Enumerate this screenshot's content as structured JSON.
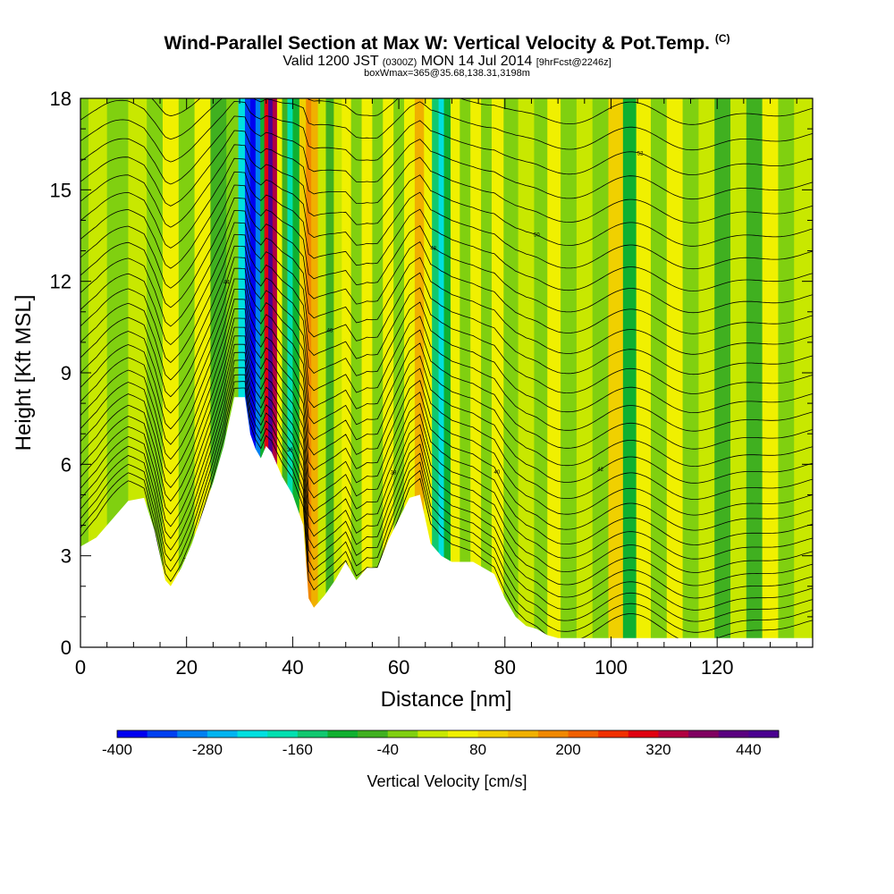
{
  "header": {
    "title": "Wind-Parallel Section at Max W: Vertical Velocity & Pot.Temp.",
    "copyright": "(C)",
    "valid_prefix": "Valid 1200 JST",
    "utc": "(0300Z)",
    "valid_date": "MON 14 Jul 2014",
    "forecast": "[9hrFcst@2246z]",
    "box_info": "boxWmax=365@35.68,138.31,3198m"
  },
  "chart_data": {
    "type": "heatmap",
    "xlabel": "Distance [nm]",
    "ylabel": "Height [Kft MSL]",
    "xlim": [
      0,
      138
    ],
    "ylim": [
      0,
      18
    ],
    "x_ticks": [
      0,
      20,
      40,
      60,
      80,
      100,
      120
    ],
    "y_ticks": [
      0,
      3,
      6,
      9,
      12,
      15,
      18
    ],
    "colorbar": {
      "label": "Vertical Velocity [cm/s]",
      "min": -400,
      "max": 480,
      "step": 40,
      "tick_labels": [
        -400,
        -280,
        -160,
        -40,
        80,
        200,
        320,
        440
      ],
      "colors": [
        "#0000f0",
        "#0040f0",
        "#0080f0",
        "#00b4f0",
        "#00e0e0",
        "#00e0b0",
        "#10c870",
        "#10b030",
        "#40b020",
        "#80d010",
        "#c8e800",
        "#f0f000",
        "#f0d000",
        "#f0b000",
        "#f08800",
        "#f06000",
        "#f03000",
        "#e00010",
        "#b00040",
        "#800060",
        "#5a0080",
        "#4a0090"
      ]
    },
    "pot_temp_labels": [
      "34",
      "36",
      "38",
      "40",
      "42",
      "44",
      "46",
      "48",
      "50",
      "52",
      "54",
      "56"
    ],
    "terrain_kft": [
      [
        0,
        3.3
      ],
      [
        3,
        3.6
      ],
      [
        6,
        4.2
      ],
      [
        9,
        4.8
      ],
      [
        12,
        4.9
      ],
      [
        14,
        3.8
      ],
      [
        16,
        2.2
      ],
      [
        17,
        2.0
      ],
      [
        19,
        2.6
      ],
      [
        21,
        3.4
      ],
      [
        23,
        4.4
      ],
      [
        25,
        5.4
      ],
      [
        27,
        6.6
      ],
      [
        29,
        8.2
      ],
      [
        31,
        8.2
      ],
      [
        32,
        7.0
      ],
      [
        33,
        6.5
      ],
      [
        34,
        6.2
      ],
      [
        35,
        6.6
      ],
      [
        36,
        6.4
      ],
      [
        37,
        6.0
      ],
      [
        38,
        5.6
      ],
      [
        40,
        5.0
      ],
      [
        42,
        4.0
      ],
      [
        43,
        1.6
      ],
      [
        44,
        1.3
      ],
      [
        46,
        1.7
      ],
      [
        48,
        2.2
      ],
      [
        50,
        2.8
      ],
      [
        52,
        2.2
      ],
      [
        54,
        2.6
      ],
      [
        56,
        2.6
      ],
      [
        58,
        3.5
      ],
      [
        60,
        4.2
      ],
      [
        62,
        4.9
      ],
      [
        64,
        5.0
      ],
      [
        65,
        4.2
      ],
      [
        66,
        3.4
      ],
      [
        68,
        3.0
      ],
      [
        70,
        2.8
      ],
      [
        74,
        2.8
      ],
      [
        78,
        2.4
      ],
      [
        80,
        1.6
      ],
      [
        82,
        1.0
      ],
      [
        84,
        0.7
      ],
      [
        86,
        0.6
      ],
      [
        88,
        0.4
      ],
      [
        90,
        0.3
      ],
      [
        138,
        0.3
      ]
    ],
    "velocity_columns": [
      {
        "x": 0.0,
        "w": -20
      },
      {
        "x": 3.0,
        "w": 10
      },
      {
        "x": 7.0,
        "w": -30
      },
      {
        "x": 11.0,
        "w": 20
      },
      {
        "x": 14.0,
        "w": -30
      },
      {
        "x": 17.0,
        "w": 50
      },
      {
        "x": 20.0,
        "w": -20
      },
      {
        "x": 23.0,
        "w": 40
      },
      {
        "x": 26.0,
        "w": -60
      },
      {
        "x": 29.0,
        "w": -20
      },
      {
        "x": 30.5,
        "w": -220
      },
      {
        "x": 31.5,
        "w": -340
      },
      {
        "x": 32.5,
        "w": -400
      },
      {
        "x": 33.5,
        "w": -300
      },
      {
        "x": 34.3,
        "w": -120
      },
      {
        "x": 35.0,
        "w": 300
      },
      {
        "x": 35.8,
        "w": 460
      },
      {
        "x": 36.6,
        "w": 340
      },
      {
        "x": 37.5,
        "w": 60
      },
      {
        "x": 38.5,
        "w": -60
      },
      {
        "x": 39.5,
        "w": -180
      },
      {
        "x": 40.5,
        "w": -120
      },
      {
        "x": 42.0,
        "w": 80
      },
      {
        "x": 43.0,
        "w": 180
      },
      {
        "x": 44.0,
        "w": 140
      },
      {
        "x": 45.5,
        "w": 20
      },
      {
        "x": 47.0,
        "w": -60
      },
      {
        "x": 48.5,
        "w": 0
      },
      {
        "x": 50.0,
        "w": 70
      },
      {
        "x": 52.0,
        "w": -40
      },
      {
        "x": 54.0,
        "w": 60
      },
      {
        "x": 56.0,
        "w": -30
      },
      {
        "x": 58.0,
        "w": 40
      },
      {
        "x": 60.0,
        "w": -40
      },
      {
        "x": 62.0,
        "w": 50
      },
      {
        "x": 64.0,
        "w": 130
      },
      {
        "x": 65.5,
        "w": 60
      },
      {
        "x": 67.0,
        "w": -140
      },
      {
        "x": 68.0,
        "w": -220
      },
      {
        "x": 69.0,
        "w": -100
      },
      {
        "x": 70.5,
        "w": 40
      },
      {
        "x": 72.5,
        "w": -20
      },
      {
        "x": 74.5,
        "w": 60
      },
      {
        "x": 76.5,
        "w": -30
      },
      {
        "x": 78.5,
        "w": 60
      },
      {
        "x": 81.0,
        "w": -10
      },
      {
        "x": 84.0,
        "w": 30
      },
      {
        "x": 87.0,
        "w": -40
      },
      {
        "x": 89.0,
        "w": 60
      },
      {
        "x": 92.0,
        "w": -20
      },
      {
        "x": 95.0,
        "w": 20
      },
      {
        "x": 98.0,
        "w": -30
      },
      {
        "x": 101.0,
        "w": 90
      },
      {
        "x": 103.5,
        "w": -90
      },
      {
        "x": 106.0,
        "w": 50
      },
      {
        "x": 109.0,
        "w": -40
      },
      {
        "x": 112.0,
        "w": 60
      },
      {
        "x": 115.0,
        "w": -30
      },
      {
        "x": 118.0,
        "w": 30
      },
      {
        "x": 121.0,
        "w": -50
      },
      {
        "x": 124.0,
        "w": 20
      },
      {
        "x": 127.0,
        "w": -60
      },
      {
        "x": 130.0,
        "w": 40
      },
      {
        "x": 133.0,
        "w": -20
      },
      {
        "x": 136.0,
        "w": 30
      }
    ]
  }
}
